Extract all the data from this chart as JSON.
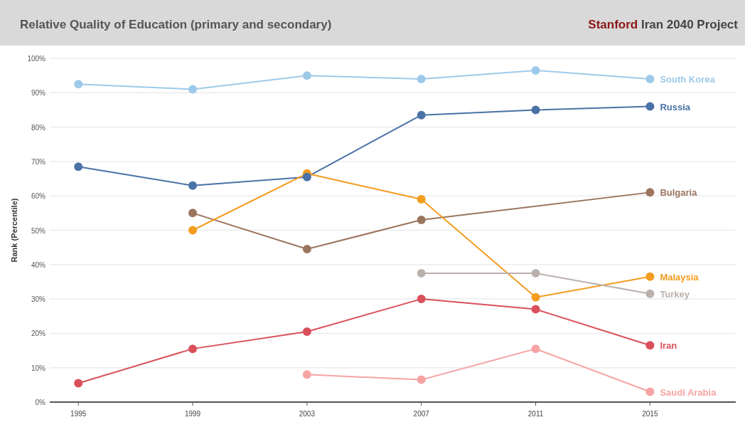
{
  "chart_data": {
    "type": "line",
    "title": "Relative Quality of Education (primary and secondary)",
    "annotations": [
      "Stanford Iran 2040 Project"
    ],
    "ylabel": "Rank (Percentile)",
    "x": [
      1995,
      1999,
      2003,
      2007,
      2011,
      2015
    ],
    "xlim": [
      1994,
      2018
    ],
    "xticks": [
      1995,
      1999,
      2003,
      2007,
      2011,
      2015
    ],
    "ylim": [
      0,
      100
    ],
    "yticks": [
      {
        "value": 0,
        "label": "0%"
      },
      {
        "value": 10,
        "label": "10%"
      },
      {
        "value": 20,
        "label": "20%"
      },
      {
        "value": 30,
        "label": "30%"
      },
      {
        "value": 40,
        "label": "40%"
      },
      {
        "value": 50,
        "label": "50%"
      },
      {
        "value": 60,
        "label": "60%"
      },
      {
        "value": 70,
        "label": "70%"
      },
      {
        "value": 80,
        "label": "80%"
      },
      {
        "value": 90,
        "label": "90%"
      },
      {
        "value": 100,
        "label": "100%"
      }
    ],
    "grid": "y",
    "legend": false,
    "marker": "circle",
    "line_style": "solid",
    "series": [
      {
        "name": "South Korea",
        "color": "#9ecae9",
        "values": [
          92.5,
          91,
          95,
          94,
          96.5,
          94
        ]
      },
      {
        "name": "Russia",
        "color": "#4a72a6",
        "values": [
          68.5,
          63,
          65.5,
          83.5,
          85,
          86
        ]
      },
      {
        "name": "Bulgaria",
        "color": "#9c755f",
        "values": [
          null,
          55,
          44.5,
          53,
          null,
          61
        ]
      },
      {
        "name": "Malaysia",
        "color": "#f39c1f",
        "values": [
          null,
          50,
          66.5,
          59,
          30.5,
          36.5
        ]
      },
      {
        "name": "Turkey",
        "color": "#bab0ac",
        "values": [
          null,
          null,
          null,
          37.5,
          37.5,
          31.5
        ]
      },
      {
        "name": "Iran",
        "color": "#d9505a",
        "values": [
          5.5,
          15.5,
          20.5,
          30,
          27,
          16.5
        ]
      },
      {
        "name": "Saudi Arabia",
        "color": "#f7a3a3",
        "values": [
          null,
          null,
          8,
          6.5,
          15.5,
          3
        ]
      }
    ]
  }
}
